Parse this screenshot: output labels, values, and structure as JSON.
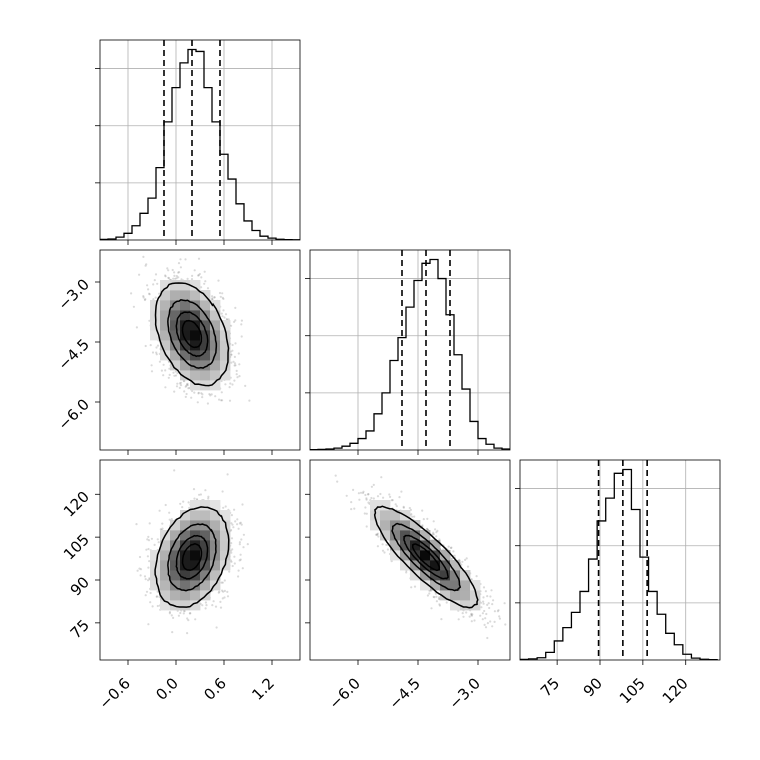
{
  "chart_data": {
    "type": "corner",
    "parameters": [
      {
        "range": [
          -0.95,
          1.55
        ],
        "ticks": [
          -0.6,
          0.0,
          0.6,
          1.2
        ],
        "tick_labels": [
          "−0.6",
          "0.0",
          "0.6",
          "1.2"
        ],
        "mean": 0.2,
        "std": 0.22,
        "quantiles": [
          -0.15,
          0.2,
          0.55
        ],
        "hist_edges": [
          -0.95,
          -0.85,
          -0.75,
          -0.65,
          -0.55,
          -0.45,
          -0.35,
          -0.25,
          -0.15,
          -0.05,
          0.05,
          0.15,
          0.25,
          0.35,
          0.45,
          0.55,
          0.65,
          0.75,
          0.85,
          0.95,
          1.05,
          1.15,
          1.25,
          1.35,
          1.45,
          1.55
        ],
        "hist_counts": [
          0.003,
          0.005,
          0.015,
          0.035,
          0.075,
          0.14,
          0.22,
          0.38,
          0.62,
          0.8,
          0.93,
          1.0,
          0.99,
          0.8,
          0.62,
          0.45,
          0.32,
          0.19,
          0.1,
          0.05,
          0.02,
          0.01,
          0.004,
          0.002,
          0.001
        ]
      },
      {
        "range": [
          -7.2,
          -2.2
        ],
        "ticks": [
          -6.0,
          -4.5,
          -3.0
        ],
        "tick_labels": [
          "−6.0",
          "−4.5",
          "−3.0"
        ],
        "mean": -4.3,
        "std": 0.62,
        "quantiles": [
          -4.9,
          -4.3,
          -3.7
        ],
        "hist_edges": [
          -7.2,
          -7.0,
          -6.8,
          -6.6,
          -6.4,
          -6.2,
          -6.0,
          -5.8,
          -5.6,
          -5.4,
          -5.2,
          -5.0,
          -4.8,
          -4.6,
          -4.4,
          -4.2,
          -4.0,
          -3.8,
          -3.6,
          -3.4,
          -3.2,
          -3.0,
          -2.8,
          -2.6,
          -2.4,
          -2.2
        ],
        "hist_counts": [
          0.002,
          0.003,
          0.005,
          0.01,
          0.02,
          0.035,
          0.06,
          0.1,
          0.19,
          0.3,
          0.47,
          0.59,
          0.75,
          0.89,
          0.98,
          1.0,
          0.9,
          0.71,
          0.5,
          0.32,
          0.15,
          0.06,
          0.03,
          0.01,
          0.005
        ]
      },
      {
        "range": [
          62.0,
          132.0
        ],
        "ticks": [
          75,
          90,
          105,
          120
        ],
        "tick_labels": [
          "75",
          "90",
          "105",
          "120"
        ],
        "mean": 98.0,
        "std": 8.5,
        "quantiles": [
          89.5,
          98.0,
          106.5
        ],
        "hist_edges": [
          62,
          65,
          68,
          71,
          74,
          77,
          80,
          83,
          86,
          89,
          92,
          95,
          98,
          101,
          104,
          107,
          110,
          113,
          116,
          119,
          122,
          125,
          128,
          131
        ],
        "hist_counts": [
          0.003,
          0.006,
          0.012,
          0.04,
          0.1,
          0.17,
          0.25,
          0.36,
          0.53,
          0.73,
          0.85,
          0.98,
          1.0,
          0.79,
          0.54,
          0.36,
          0.24,
          0.14,
          0.08,
          0.03,
          0.01,
          0.004,
          0.002
        ]
      }
    ],
    "correlations": {
      "1-0": -0.35,
      "2-0": 0.3,
      "2-1": -0.85
    }
  }
}
